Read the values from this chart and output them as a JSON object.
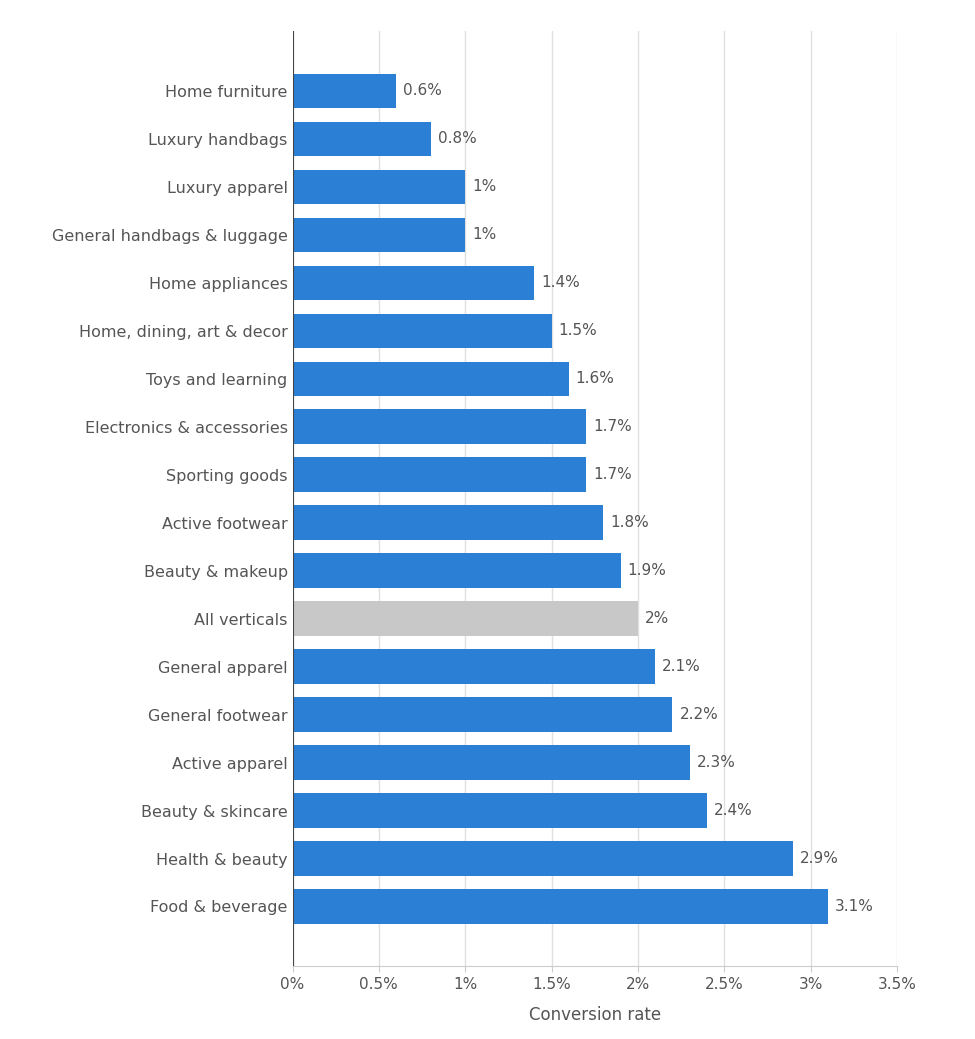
{
  "categories": [
    "Home furniture",
    "Luxury handbags",
    "Luxury apparel",
    "General handbags & luggage",
    "Home appliances",
    "Home, dining, art & decor",
    "Toys and learning",
    "Electronics & accessories",
    "Sporting goods",
    "Active footwear",
    "Beauty & makeup",
    "All verticals",
    "General apparel",
    "General footwear",
    "Active apparel",
    "Beauty & skincare",
    "Health & beauty",
    "Food & beverage"
  ],
  "values": [
    0.6,
    0.8,
    1.0,
    1.0,
    1.4,
    1.5,
    1.6,
    1.7,
    1.7,
    1.8,
    1.9,
    2.0,
    2.1,
    2.2,
    2.3,
    2.4,
    2.9,
    3.1
  ],
  "labels": [
    "0.6%",
    "0.8%",
    "1%",
    "1%",
    "1.4%",
    "1.5%",
    "1.6%",
    "1.7%",
    "1.7%",
    "1.8%",
    "1.9%",
    "2%",
    "2.1%",
    "2.2%",
    "2.3%",
    "2.4%",
    "2.9%",
    "3.1%"
  ],
  "bar_colors": [
    "#2b7fd4",
    "#2b7fd4",
    "#2b7fd4",
    "#2b7fd4",
    "#2b7fd4",
    "#2b7fd4",
    "#2b7fd4",
    "#2b7fd4",
    "#2b7fd4",
    "#2b7fd4",
    "#2b7fd4",
    "#c8c8c8",
    "#2b7fd4",
    "#2b7fd4",
    "#2b7fd4",
    "#2b7fd4",
    "#2b7fd4",
    "#2b7fd4"
  ],
  "xlabel": "Conversion rate",
  "xlim": [
    0,
    3.5
  ],
  "xtick_values": [
    0,
    0.5,
    1.0,
    1.5,
    2.0,
    2.5,
    3.0,
    3.5
  ],
  "xtick_labels": [
    "0%",
    "0.5%",
    "1%",
    "1.5%",
    "2%",
    "2.5%",
    "3%",
    "3.5%"
  ],
  "background_color": "#ffffff",
  "bar_height": 0.72,
  "label_fontsize": 11.5,
  "tick_fontsize": 11,
  "xlabel_fontsize": 12,
  "value_label_fontsize": 11,
  "grid_color": "#e0e0e0",
  "yaxis_color": "#555555",
  "text_color": "#555555"
}
